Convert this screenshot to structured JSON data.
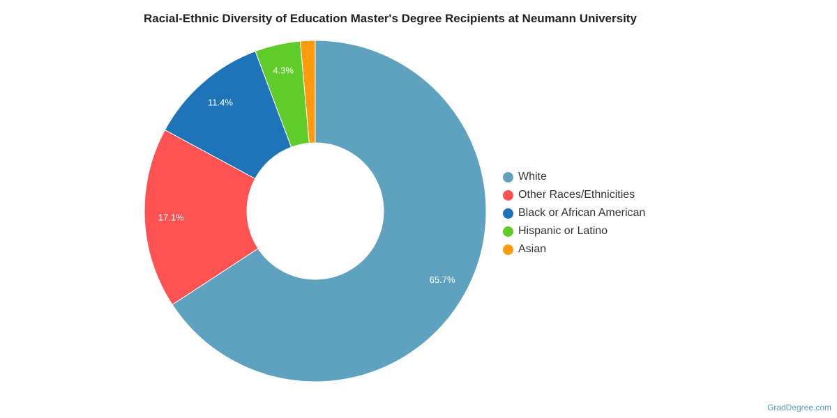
{
  "chart_data": {
    "type": "pie",
    "title": "Racial-Ethnic Diversity of Education Master's Degree Recipients at Neumann University",
    "donut": true,
    "legend_position": "right",
    "slices": [
      {
        "name": "White",
        "value": 65.7,
        "label": "65.7%",
        "color": "#5ea2c0"
      },
      {
        "name": "Other Races/Ethnicities",
        "value": 17.1,
        "label": "17.1%",
        "color": "#ff5252"
      },
      {
        "name": "Black or African American",
        "value": 11.4,
        "label": "11.4%",
        "color": "#1f73b8"
      },
      {
        "name": "Hispanic or Latino",
        "value": 4.3,
        "label": "4.3%",
        "color": "#5fcc2a"
      },
      {
        "name": "Asian",
        "value": 1.4,
        "label": "",
        "color": "#fe9a0b"
      }
    ]
  },
  "credit": "GradDegree.com"
}
